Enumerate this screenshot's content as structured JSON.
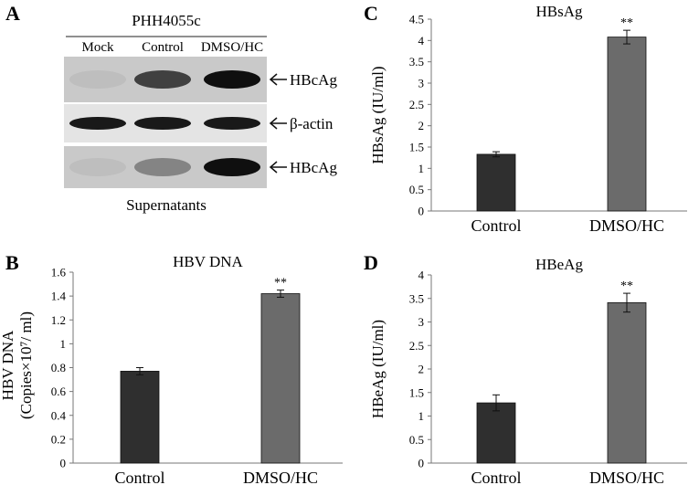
{
  "panel_a": {
    "letter": "A",
    "cell_line": "PHH4055c",
    "lanes": [
      "Mock",
      "Control",
      "DMSO/HC"
    ],
    "bands": [
      {
        "label": "HBcAg",
        "intensities": [
          0.05,
          0.7,
          0.95
        ]
      },
      {
        "label": "β-actin",
        "intensities": [
          0.9,
          0.9,
          0.9
        ]
      },
      {
        "label": "HBcAg",
        "intensities": [
          0.05,
          0.35,
          0.95
        ]
      }
    ],
    "caption": "Supernatants"
  },
  "chart_data": [
    {
      "panel": "B",
      "type": "bar",
      "title": "HBV DNA",
      "xlabel": "",
      "ylabel": [
        "HBV DNA",
        "(Copies×10⁷/ ml)"
      ],
      "categories": [
        "Control",
        "DMSO/HC"
      ],
      "values": [
        0.77,
        1.42
      ],
      "errors": [
        0.03,
        0.03
      ],
      "significance": [
        "",
        "**"
      ],
      "ylim": [
        0,
        1.6
      ],
      "yticks": [
        "0",
        "0.2",
        "0.4",
        "0.6",
        "0.8",
        "1",
        "1.2",
        "1.4",
        "1.6"
      ],
      "grid": false,
      "colors": [
        "#2f2f2f",
        "#6b6b6b"
      ]
    },
    {
      "panel": "C",
      "type": "bar",
      "title": "HBsAg",
      "xlabel": "",
      "ylabel": [
        "HBsAg (IU/ml)"
      ],
      "categories": [
        "Control",
        "DMSO/HC"
      ],
      "values": [
        1.33,
        4.08
      ],
      "errors": [
        0.06,
        0.16
      ],
      "significance": [
        "",
        "**"
      ],
      "ylim": [
        0,
        4.5
      ],
      "yticks": [
        "0",
        "0.5",
        "1",
        "1.5",
        "2",
        "2.5",
        "3",
        "3.5",
        "4",
        "4.5"
      ],
      "grid": false,
      "colors": [
        "#2f2f2f",
        "#6b6b6b"
      ]
    },
    {
      "panel": "D",
      "type": "bar",
      "title": "HBeAg",
      "xlabel": "",
      "ylabel": [
        "HBeAg (IU/ml)"
      ],
      "categories": [
        "Control",
        "DMSO/HC"
      ],
      "values": [
        1.28,
        3.41
      ],
      "errors": [
        0.17,
        0.2
      ],
      "significance": [
        "",
        "**"
      ],
      "ylim": [
        0,
        4
      ],
      "yticks": [
        "0",
        "0.5",
        "1",
        "1.5",
        "2",
        "2.5",
        "3",
        "3.5",
        "4"
      ],
      "grid": false,
      "colors": [
        "#2f2f2f",
        "#6b6b6b"
      ]
    }
  ]
}
